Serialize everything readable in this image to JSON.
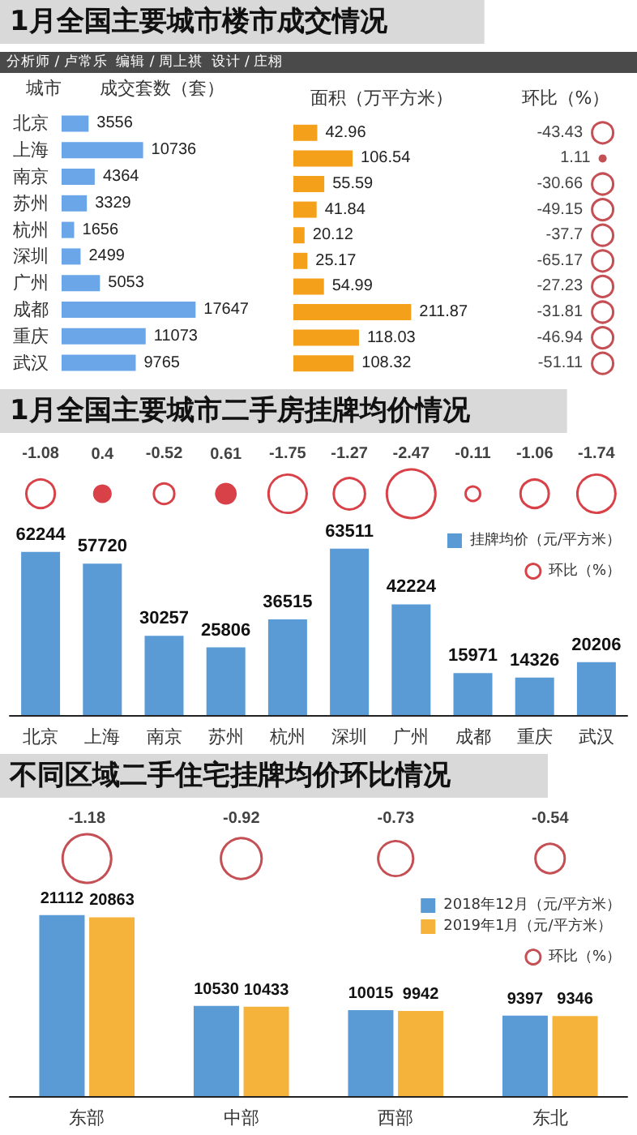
{
  "chart_data": [
    {
      "type": "bar",
      "orientation": "horizontal",
      "title": "1月全国主要城市楼市成交情况",
      "subtitle": "分析师 / 卢常乐  编辑 / 周上祺  设计 / 庄栩",
      "ylabel": "城市",
      "xlabel": "成交套数（套）",
      "categories": [
        "北京",
        "上海",
        "南京",
        "苏州",
        "杭州",
        "深圳",
        "广州",
        "成都",
        "重庆",
        "武汉"
      ],
      "color": "#6aa6e8",
      "values": [
        3556,
        10736,
        4364,
        3329,
        1656,
        2499,
        5053,
        17647,
        11073,
        9765
      ],
      "data_labels": true,
      "grid": false
    },
    {
      "type": "bar",
      "orientation": "horizontal",
      "xlabel": "面积（万平方米）",
      "categories": [
        null,
        null,
        null,
        null,
        null,
        null,
        null,
        null,
        null,
        null
      ],
      "color": "#f5a01a",
      "values": [
        42.96,
        106.54,
        55.59,
        41.84,
        20.12,
        25.17,
        54.99,
        211.87,
        118.03,
        108.32
      ],
      "data_labels": true,
      "grid": false
    },
    {
      "type": "other",
      "xlabel": "环比（%）",
      "categories": [
        null,
        null,
        null,
        null,
        null,
        null,
        null,
        null,
        null,
        null
      ],
      "color": "#b5232b",
      "values": [
        -43.43,
        1.11,
        -30.66,
        -49.15,
        -37.7,
        -65.17,
        -27.23,
        -31.81,
        -46.94,
        -51.11
      ],
      "data_labels": true
    },
    {
      "type": "bar",
      "title": "1月全国主要城市二手房挂牌均价情况",
      "categories": [
        "北京",
        "上海",
        "南京",
        "苏州",
        "杭州",
        "深圳",
        "广州",
        "成都",
        "重庆",
        "武汉"
      ],
      "series": [
        {
          "name": "挂牌均价（元/平方米）",
          "color": "#5b9bd5",
          "values": [
            62244,
            57720,
            30257,
            25806,
            36515,
            63511,
            42224,
            15971,
            14326,
            20206
          ]
        }
      ],
      "data_labels": true,
      "legend": "top right",
      "grid": false
    },
    {
      "type": "other",
      "categories": [
        null,
        null,
        null,
        null,
        null,
        null,
        null,
        null,
        null,
        null
      ],
      "series": [
        {
          "name": "环比（%）",
          "color": "#d0121b",
          "values": [
            -1.08,
            0.4,
            -0.52,
            0.61,
            -1.75,
            -1.27,
            -2.47,
            -0.11,
            -1.06,
            -1.74
          ]
        }
      ],
      "data_labels": true,
      "legend": "right"
    },
    {
      "type": "bar",
      "title": "不同区域二手住宅挂牌均价环比情况",
      "categories": [
        "东部",
        "中部",
        "西部",
        "东北"
      ],
      "series": [
        {
          "name": "2018年12月（元/平方米）",
          "color": "#5b9bd5",
          "values": [
            21112,
            10530,
            10015,
            9397
          ]
        },
        {
          "name": "2019年1月（元/平方米）",
          "color": "#f5b33c",
          "values": [
            20863,
            10433,
            9942,
            9346
          ]
        }
      ],
      "data_labels": true,
      "legend": "top right",
      "grid": false
    },
    {
      "type": "other",
      "categories": [
        null,
        null,
        null,
        null
      ],
      "series": [
        {
          "name": "环比（%）",
          "color": "#b5232b",
          "values": [
            -1.18,
            -0.92,
            -0.73,
            -0.54
          ]
        }
      ],
      "data_labels": true,
      "legend": "right"
    }
  ]
}
